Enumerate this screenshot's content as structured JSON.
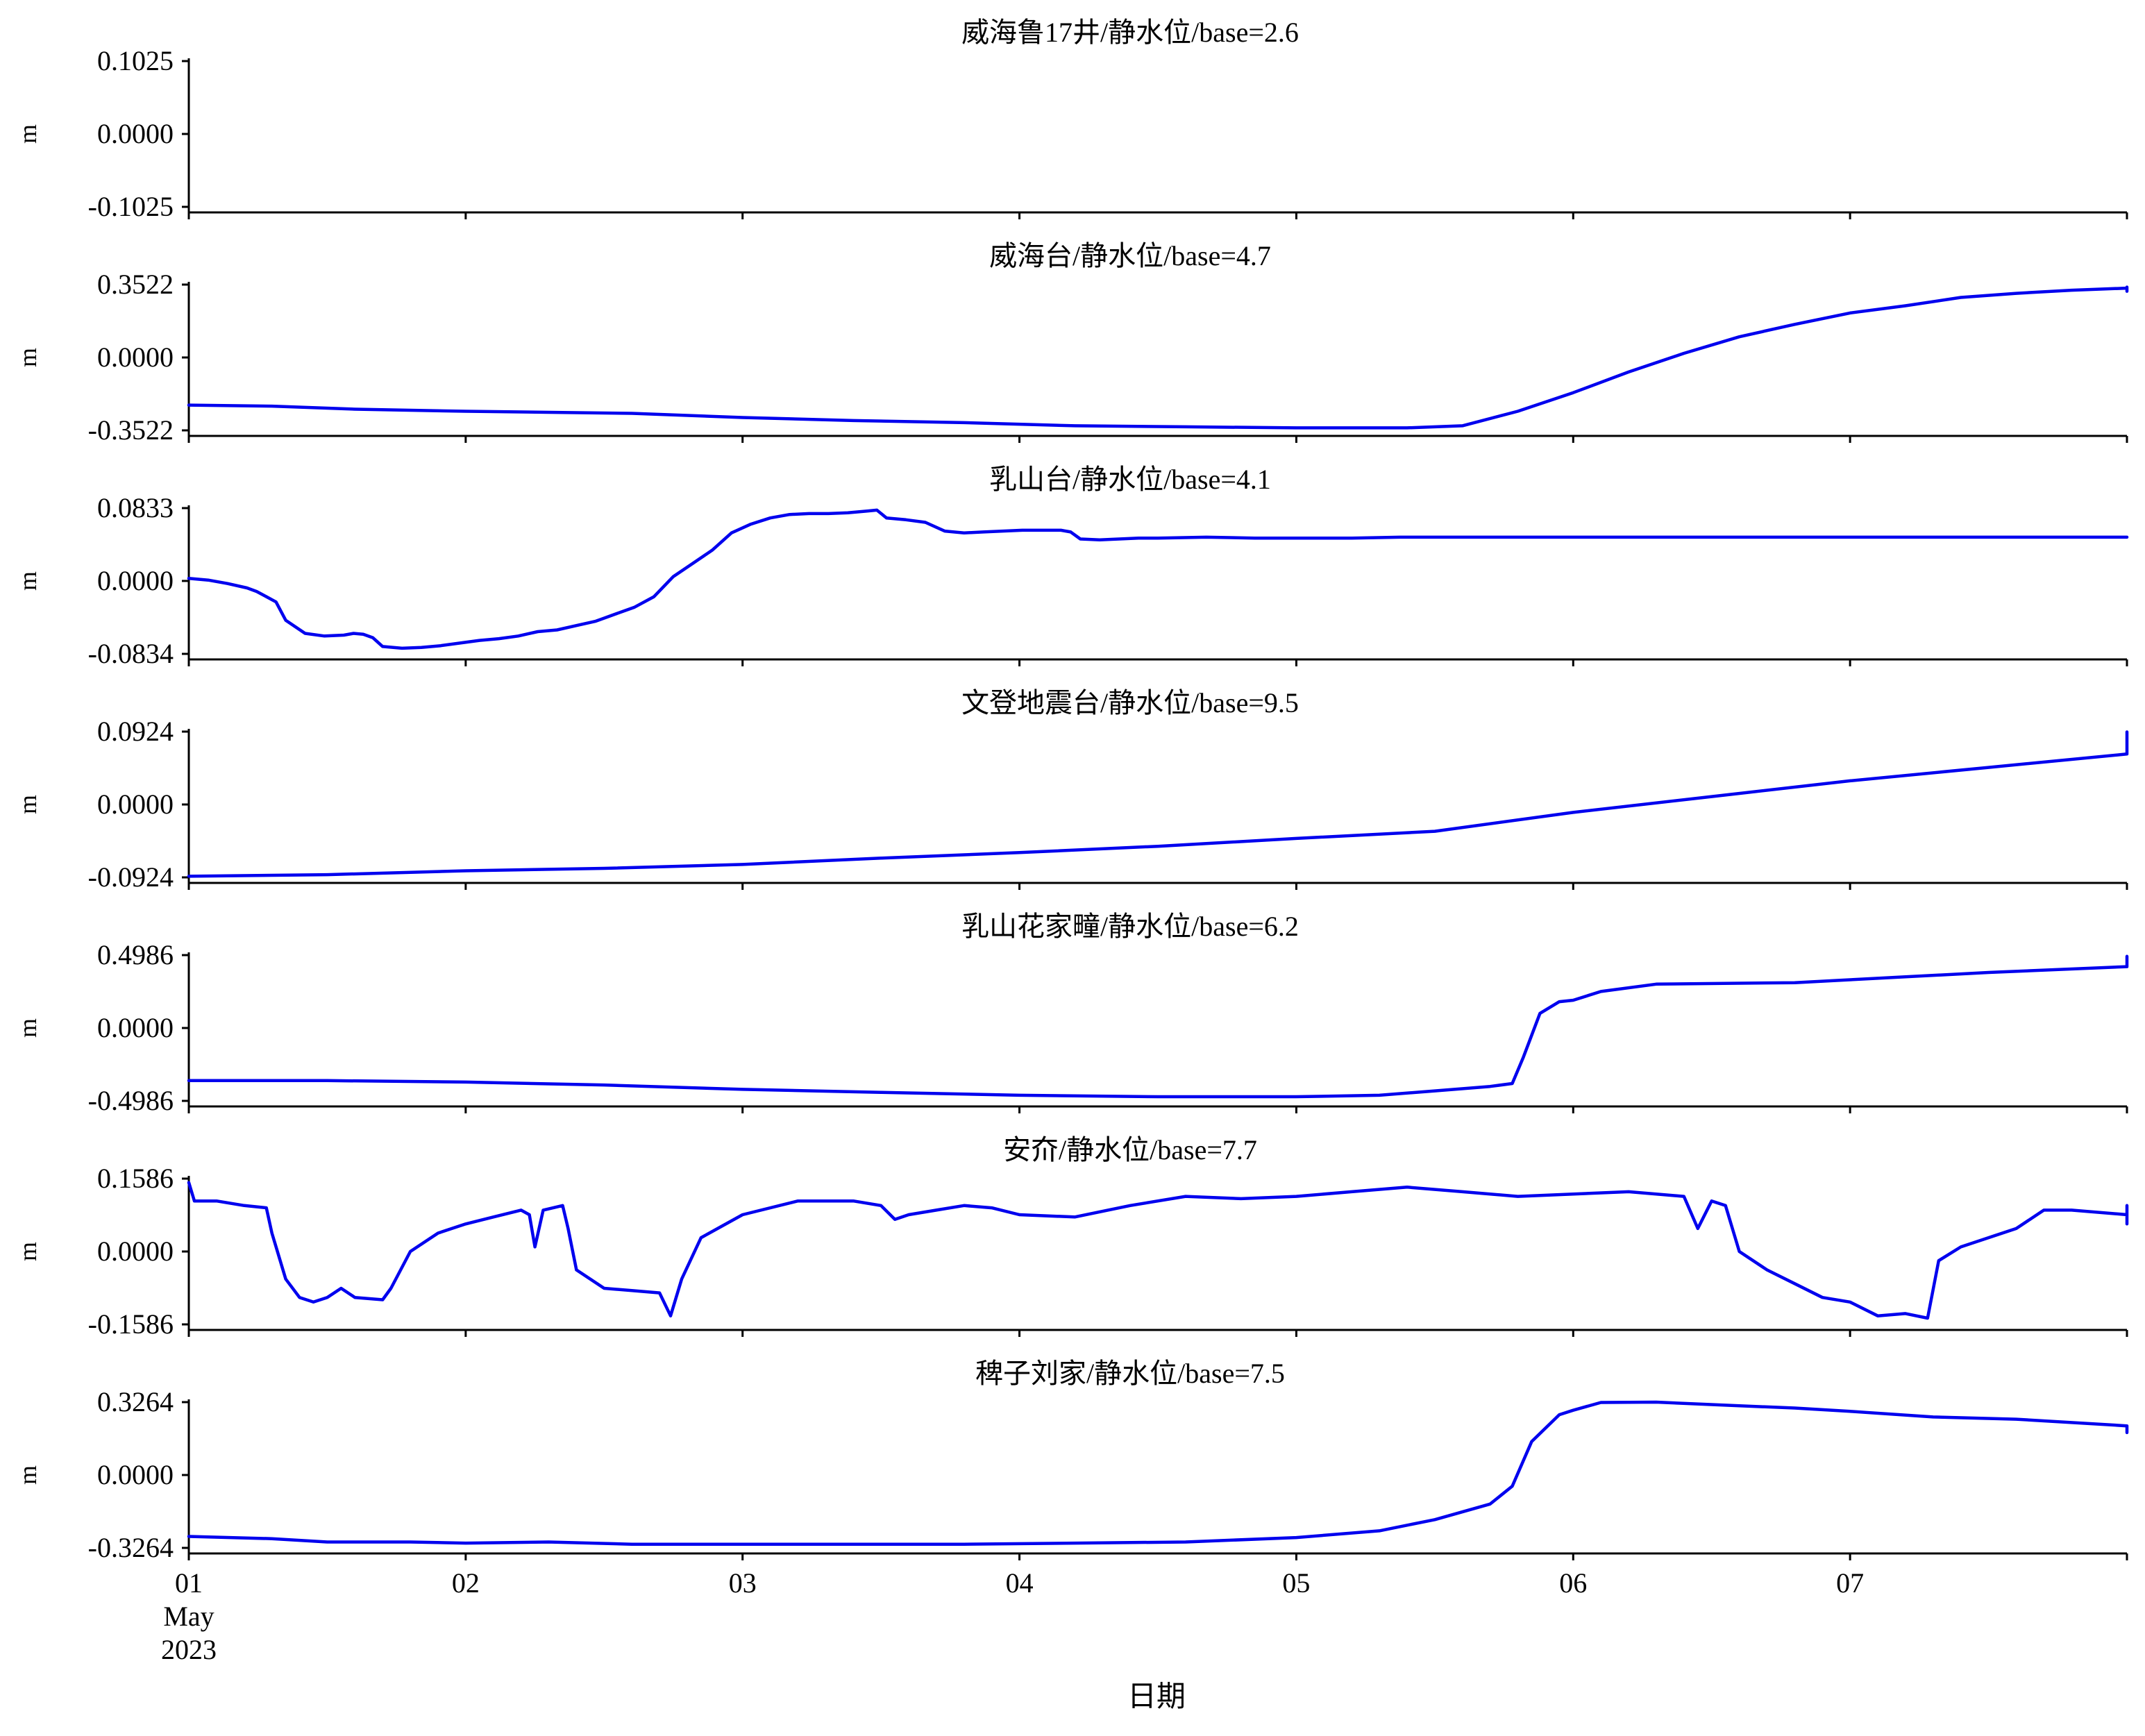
{
  "chart_data": {
    "type": "line",
    "x_axis": {
      "ticks": [
        "01",
        "02",
        "03",
        "04",
        "05",
        "06",
        "07"
      ],
      "month": "May",
      "year": "2023",
      "label": "日期",
      "range": [
        "2023-05-01",
        "2023-05-08"
      ]
    },
    "ylabel": "m",
    "panels": [
      {
        "title": "威海鲁17井/静水位/base=2.6",
        "yticks": [
          "0.1025",
          "0.0000",
          "-0.1025"
        ],
        "ylim": [
          -0.1025,
          0.1025
        ],
        "series": []
      },
      {
        "title": "威海台/静水位/base=4.7",
        "yticks": [
          "0.3522",
          "0.0000",
          "-0.3522"
        ],
        "ylim": [
          -0.3522,
          0.3522
        ],
        "series": [
          [
            0,
            -0.23
          ],
          [
            0.3,
            -0.235
          ],
          [
            0.6,
            -0.25
          ],
          [
            1.0,
            -0.26
          ],
          [
            1.3,
            -0.265
          ],
          [
            1.6,
            -0.27
          ],
          [
            2.0,
            -0.29
          ],
          [
            2.4,
            -0.305
          ],
          [
            2.8,
            -0.315
          ],
          [
            3.2,
            -0.33
          ],
          [
            3.6,
            -0.335
          ],
          [
            4.0,
            -0.34
          ],
          [
            4.4,
            -0.34
          ],
          [
            4.6,
            -0.33
          ],
          [
            4.8,
            -0.26
          ],
          [
            5.0,
            -0.17
          ],
          [
            5.2,
            -0.07
          ],
          [
            5.4,
            0.02
          ],
          [
            5.6,
            0.1
          ],
          [
            5.8,
            0.16
          ],
          [
            6.0,
            0.215
          ],
          [
            6.2,
            0.25
          ],
          [
            6.4,
            0.29
          ],
          [
            6.6,
            0.31
          ],
          [
            6.8,
            0.325
          ],
          [
            7.0,
            0.335
          ],
          [
            7.2,
            0.34
          ],
          [
            7.4,
            0.34
          ],
          [
            7.6,
            0.335
          ],
          [
            7.8,
            0.325
          ],
          [
            7.99,
            0.32
          ]
        ]
      },
      {
        "title": "乳山台/静水位/base=4.1",
        "yticks": [
          "0.0833",
          "0.0000",
          "-0.0834"
        ],
        "ylim": [
          -0.0834,
          0.0833
        ],
        "series": [
          [
            0,
            0.003
          ],
          [
            0.2,
            0.001
          ],
          [
            0.4,
            -0.003
          ],
          [
            0.6,
            -0.008
          ],
          [
            0.7,
            -0.012
          ],
          [
            0.8,
            -0.018
          ],
          [
            0.9,
            -0.024
          ],
          [
            1.0,
            -0.045
          ],
          [
            1.2,
            -0.06
          ],
          [
            1.4,
            -0.063
          ],
          [
            1.6,
            -0.062
          ],
          [
            1.7,
            -0.06
          ],
          [
            1.8,
            -0.061
          ],
          [
            1.9,
            -0.065
          ],
          [
            2.0,
            -0.075
          ],
          [
            2.2,
            -0.077
          ],
          [
            2.4,
            -0.076
          ],
          [
            2.6,
            -0.074
          ],
          [
            2.8,
            -0.071
          ],
          [
            3.0,
            -0.068
          ],
          [
            3.2,
            -0.066
          ],
          [
            3.4,
            -0.063
          ],
          [
            3.6,
            -0.058
          ],
          [
            3.8,
            -0.056
          ],
          [
            4.0,
            -0.051
          ],
          [
            4.2,
            -0.046
          ],
          [
            4.4,
            -0.038
          ],
          [
            4.6,
            -0.03
          ],
          [
            4.8,
            -0.018
          ],
          [
            5.0,
            0.005
          ],
          [
            5.2,
            0.02
          ],
          [
            5.4,
            0.035
          ],
          [
            5.6,
            0.055
          ],
          [
            5.8,
            0.065
          ],
          [
            6.0,
            0.072
          ],
          [
            6.2,
            0.076
          ],
          [
            6.4,
            0.077
          ],
          [
            6.6,
            0.077
          ],
          [
            6.8,
            0.078
          ],
          [
            7.0,
            0.08
          ],
          [
            7.1,
            0.081
          ],
          [
            7.2,
            0.072
          ],
          [
            7.4,
            0.07
          ],
          [
            7.6,
            0.067
          ],
          [
            7.8,
            0.057
          ],
          [
            8.0,
            0.055
          ],
          [
            8.2,
            0.056
          ],
          [
            8.4,
            0.057
          ],
          [
            8.6,
            0.058
          ],
          [
            8.8,
            0.058
          ],
          [
            9.0,
            0.058
          ],
          [
            9.1,
            0.056
          ],
          [
            9.2,
            0.048
          ],
          [
            9.4,
            0.047
          ],
          [
            9.6,
            0.048
          ],
          [
            9.8,
            0.049
          ],
          [
            10.0,
            0.049
          ],
          [
            10.5,
            0.05
          ],
          [
            11.0,
            0.049
          ],
          [
            11.5,
            0.049
          ],
          [
            12.0,
            0.049
          ],
          [
            12.5,
            0.05
          ],
          [
            13.0,
            0.05
          ],
          [
            13.5,
            0.05
          ],
          [
            14.0,
            0.05
          ],
          [
            14.5,
            0.05
          ],
          [
            15.0,
            0.05
          ],
          [
            15.5,
            0.05
          ],
          [
            16.0,
            0.05
          ],
          [
            16.5,
            0.05
          ],
          [
            17.0,
            0.05
          ],
          [
            17.5,
            0.05
          ],
          [
            18.0,
            0.05
          ],
          [
            18.5,
            0.05
          ],
          [
            19.0,
            0.05
          ],
          [
            19.5,
            0.05
          ],
          [
            20.0,
            0.05
          ]
        ],
        "series_x_scale": 0.35,
        "series_x_note": ""
      },
      {
        "title": "文登地震台/静水位/base=9.5",
        "yticks": [
          "0.0924",
          "0.0000",
          "-0.0924"
        ],
        "ylim": [
          -0.0924,
          0.0924
        ],
        "series": [
          [
            0,
            -0.091
          ],
          [
            0.5,
            -0.089
          ],
          [
            1.0,
            -0.084
          ],
          [
            1.5,
            -0.081
          ],
          [
            2.0,
            -0.076
          ],
          [
            2.5,
            -0.068
          ],
          [
            3.0,
            -0.061
          ],
          [
            3.5,
            -0.053
          ],
          [
            4.0,
            -0.043
          ],
          [
            4.5,
            -0.034
          ],
          [
            5.0,
            -0.01
          ],
          [
            5.5,
            0.01
          ],
          [
            6.0,
            0.03
          ],
          [
            6.5,
            0.047
          ],
          [
            7.0,
            0.064
          ],
          [
            7.5,
            0.077
          ],
          [
            7.99,
            0.092
          ]
        ]
      },
      {
        "title": "乳山花家疃/静水位/base=6.2",
        "yticks": [
          "0.4986",
          "0.0000",
          "-0.4986"
        ],
        "ylim": [
          -0.4986,
          0.4986
        ],
        "series": [
          [
            0,
            -0.36
          ],
          [
            0.5,
            -0.36
          ],
          [
            1.0,
            -0.37
          ],
          [
            1.5,
            -0.39
          ],
          [
            2.0,
            -0.42
          ],
          [
            2.5,
            -0.44
          ],
          [
            3.0,
            -0.46
          ],
          [
            3.5,
            -0.47
          ],
          [
            4.0,
            -0.47
          ],
          [
            4.3,
            -0.46
          ],
          [
            4.5,
            -0.43
          ],
          [
            4.7,
            -0.4
          ],
          [
            4.78,
            -0.38
          ],
          [
            4.82,
            -0.2
          ],
          [
            4.88,
            0.1
          ],
          [
            4.95,
            0.18
          ],
          [
            5.0,
            0.19
          ],
          [
            5.1,
            0.25
          ],
          [
            5.3,
            0.3
          ],
          [
            5.8,
            0.31
          ],
          [
            6.0,
            0.33
          ],
          [
            6.2,
            0.35
          ],
          [
            6.5,
            0.38
          ],
          [
            7.0,
            0.42
          ],
          [
            7.5,
            0.44
          ],
          [
            7.99,
            0.49
          ]
        ]
      },
      {
        "title": "安夼/静水位/base=7.7",
        "yticks": [
          "0.1586",
          "0.0000",
          "-0.1586"
        ],
        "ylim": [
          -0.1586,
          0.1586
        ],
        "series": [
          [
            0,
            0.15
          ],
          [
            0.02,
            0.11
          ],
          [
            0.1,
            0.11
          ],
          [
            0.2,
            0.1
          ],
          [
            0.28,
            0.095
          ],
          [
            0.3,
            0.04
          ],
          [
            0.35,
            -0.06
          ],
          [
            0.4,
            -0.1
          ],
          [
            0.45,
            -0.11
          ],
          [
            0.5,
            -0.1
          ],
          [
            0.55,
            -0.08
          ],
          [
            0.6,
            -0.1
          ],
          [
            0.7,
            -0.105
          ],
          [
            0.73,
            -0.08
          ],
          [
            0.8,
            0.0
          ],
          [
            0.9,
            0.04
          ],
          [
            1.0,
            0.06
          ],
          [
            1.1,
            0.075
          ],
          [
            1.2,
            0.09
          ],
          [
            1.23,
            0.08
          ],
          [
            1.25,
            0.01
          ],
          [
            1.28,
            0.09
          ],
          [
            1.35,
            0.1
          ],
          [
            1.37,
            0.05
          ],
          [
            1.4,
            -0.04
          ],
          [
            1.5,
            -0.08
          ],
          [
            1.6,
            -0.085
          ],
          [
            1.7,
            -0.09
          ],
          [
            1.74,
            -0.14
          ],
          [
            1.78,
            -0.06
          ],
          [
            1.85,
            0.03
          ],
          [
            2.0,
            0.08
          ],
          [
            2.2,
            0.11
          ],
          [
            2.4,
            0.11
          ],
          [
            2.5,
            0.1
          ],
          [
            2.55,
            0.07
          ],
          [
            2.6,
            0.08
          ],
          [
            2.7,
            0.09
          ],
          [
            2.8,
            0.1
          ],
          [
            2.9,
            0.095
          ],
          [
            3.0,
            0.08
          ],
          [
            3.2,
            0.075
          ],
          [
            3.4,
            0.1
          ],
          [
            3.6,
            0.12
          ],
          [
            3.8,
            0.115
          ],
          [
            4.0,
            0.12
          ],
          [
            4.2,
            0.13
          ],
          [
            4.4,
            0.14
          ],
          [
            4.6,
            0.13
          ],
          [
            4.8,
            0.12
          ],
          [
            5.0,
            0.125
          ],
          [
            5.2,
            0.13
          ],
          [
            5.4,
            0.12
          ],
          [
            5.45,
            0.05
          ],
          [
            5.5,
            0.11
          ],
          [
            5.55,
            0.1
          ],
          [
            5.6,
            0.0
          ],
          [
            5.7,
            -0.04
          ],
          [
            5.8,
            -0.07
          ],
          [
            5.9,
            -0.1
          ],
          [
            6.0,
            -0.11
          ],
          [
            6.1,
            -0.14
          ],
          [
            6.2,
            -0.135
          ],
          [
            6.28,
            -0.145
          ],
          [
            6.32,
            -0.02
          ],
          [
            6.4,
            0.01
          ],
          [
            6.5,
            0.03
          ],
          [
            6.6,
            0.05
          ],
          [
            6.7,
            0.09
          ],
          [
            6.8,
            0.09
          ],
          [
            7.0,
            0.08
          ],
          [
            7.2,
            0.08
          ],
          [
            7.4,
            0.07
          ],
          [
            7.6,
            0.06
          ],
          [
            7.7,
            0.09
          ],
          [
            7.8,
            0.1
          ],
          [
            7.9,
            0.09
          ],
          [
            7.99,
            0.07
          ]
        ]
      },
      {
        "title": "稗子刘家/静水位/base=7.5",
        "yticks": [
          "0.3264",
          "0.0000",
          "-0.3264"
        ],
        "ylim": [
          -0.3264,
          0.3264
        ],
        "series": [
          [
            0,
            -0.275
          ],
          [
            0.3,
            -0.285
          ],
          [
            0.5,
            -0.3
          ],
          [
            0.8,
            -0.3
          ],
          [
            1.0,
            -0.305
          ],
          [
            1.3,
            -0.3
          ],
          [
            1.6,
            -0.31
          ],
          [
            2.0,
            -0.31
          ],
          [
            2.4,
            -0.31
          ],
          [
            2.8,
            -0.31
          ],
          [
            3.2,
            -0.305
          ],
          [
            3.6,
            -0.3
          ],
          [
            4.0,
            -0.28
          ],
          [
            4.3,
            -0.25
          ],
          [
            4.5,
            -0.2
          ],
          [
            4.7,
            -0.13
          ],
          [
            4.78,
            -0.05
          ],
          [
            4.85,
            0.15
          ],
          [
            4.95,
            0.27
          ],
          [
            5.0,
            0.29
          ],
          [
            5.1,
            0.325
          ],
          [
            5.3,
            0.33
          ],
          [
            5.6,
            0.31
          ],
          [
            5.8,
            0.3
          ],
          [
            6.0,
            0.285
          ],
          [
            6.3,
            0.26
          ],
          [
            6.6,
            0.25
          ],
          [
            7.0,
            0.22
          ],
          [
            7.3,
            0.21
          ],
          [
            7.6,
            0.205
          ],
          [
            7.99,
            0.19
          ]
        ]
      }
    ]
  }
}
